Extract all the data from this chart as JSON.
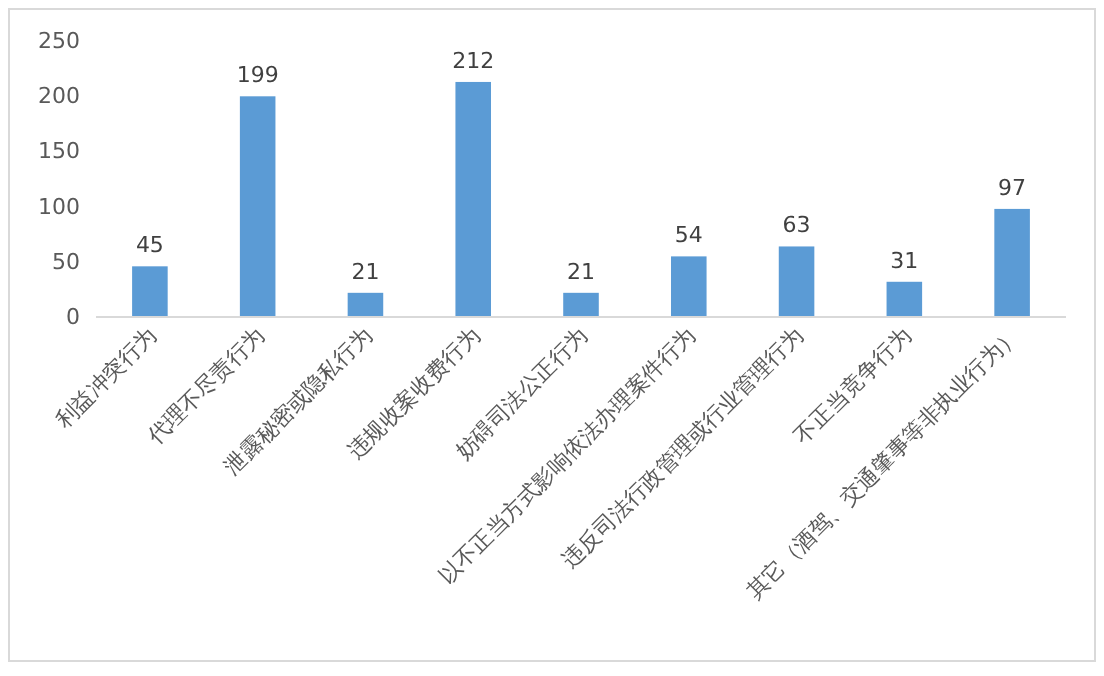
{
  "chart_data": {
    "type": "bar",
    "categories": [
      "利益冲突行为",
      "代理不尽责行为",
      "泄露秘密或隐私行为",
      "违规收案收费行为",
      "妨碍司法公正行为",
      "以不正当方式影响依法办理案件行为",
      "违反司法行政管理或行业管理行为",
      "不正当竞争行为",
      "其它（酒驾、交通肇事等非执业行为）"
    ],
    "values": [
      45,
      199,
      21,
      212,
      21,
      54,
      63,
      31,
      97
    ],
    "color": "#5b9bd5",
    "ylim": [
      0,
      250
    ],
    "yticks": [
      0,
      50,
      100,
      150,
      200,
      250
    ],
    "data_labels": true,
    "grid": false
  }
}
